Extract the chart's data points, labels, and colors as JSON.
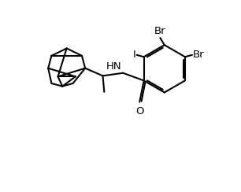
{
  "line_color": "#000000",
  "bg_color": "#ffffff",
  "line_width": 1.5,
  "font_size": 9.5,
  "figsize": [
    3.06,
    2.44
  ],
  "dpi": 100,
  "xlim": [
    0,
    10
  ],
  "ylim": [
    0,
    8
  ]
}
